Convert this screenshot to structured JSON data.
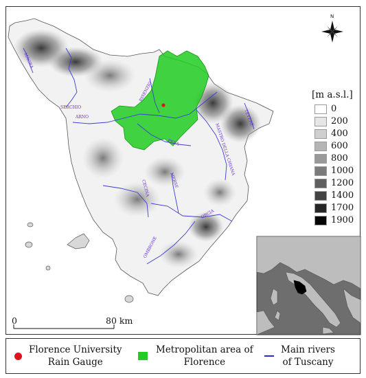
{
  "north_label": "N",
  "elevation_legend": {
    "title": "[m a.s.l.]",
    "labels": [
      "0",
      "200",
      "400",
      "600",
      "800",
      "1000",
      "1200",
      "1400",
      "1700",
      "1900"
    ],
    "colors": [
      "#ffffff",
      "#e6e6e6",
      "#cfcfcf",
      "#b5b5b5",
      "#999999",
      "#7c7c7c",
      "#5f5f5f",
      "#434343",
      "#262626",
      "#050505"
    ]
  },
  "scale_bar": {
    "start_label": "0",
    "end_label": "80 km"
  },
  "rivers": [
    "MAGRA",
    "SERCHIO",
    "ARNO",
    "BISENZIO",
    "PESA",
    "MASTRO DELLA CHIANA",
    "TEVERE",
    "CECINA",
    "MERSE",
    "ORCIA",
    "OMBRONE"
  ],
  "legend": {
    "rain_gauge_line1": "Florence University",
    "rain_gauge_line2": "Rain Gauge",
    "metro_line1": "Metropolitan area of",
    "metro_line2": "Florence",
    "rivers_line1": "Main rivers",
    "rivers_line2": "of Tuscany"
  },
  "colors": {
    "metro_area": "#22cc22",
    "rain_gauge": "#e2101a",
    "rivers": "#2b2bdd",
    "inset_land": "#bdbdbd",
    "inset_sea": "#6e6e6e",
    "tuscany_highlight": "#000000"
  }
}
